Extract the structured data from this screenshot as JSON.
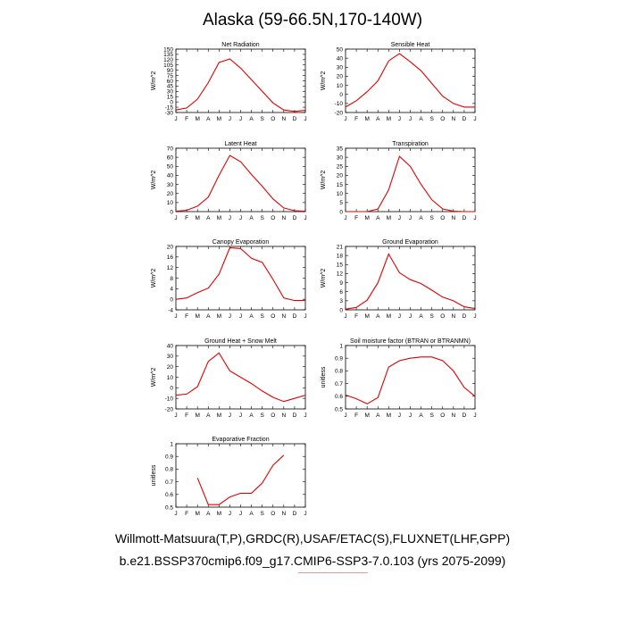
{
  "page": {
    "title": "Alaska (59-66.5N,170-140W)",
    "caption_line1": "Willmott-Matsuura(T,P),GRDC(R),USAF/ETAC(S),FLUXNET(LHF,GPP)",
    "caption_line2": "b.e21.BSSP370cmip6.f09_g17.CMIP6-SSP3-7.0.103 (yrs 2075-2099)",
    "line_color": "#e00000"
  },
  "chart_data": [
    {
      "type": "line",
      "title": "Net Radiation",
      "ylabel": "W/m^2",
      "categories": [
        "J",
        "F",
        "M",
        "A",
        "M",
        "J",
        "J",
        "A",
        "S",
        "O",
        "N",
        "D",
        "J"
      ],
      "ylim": [
        -30,
        150
      ],
      "yticks": [
        -30,
        -15,
        0,
        15,
        30,
        45,
        60,
        75,
        90,
        105,
        120,
        135,
        150
      ],
      "values": [
        -23,
        -17,
        8,
        55,
        112,
        122,
        96,
        63,
        30,
        -3,
        -23,
        -27,
        -24
      ]
    },
    {
      "type": "line",
      "title": "Sensible Heat",
      "ylabel": "W/m^2",
      "categories": [
        "J",
        "F",
        "M",
        "A",
        "M",
        "J",
        "J",
        "A",
        "S",
        "O",
        "N",
        "D",
        "J"
      ],
      "ylim": [
        -20,
        50
      ],
      "yticks": [
        -20,
        -10,
        0,
        10,
        20,
        30,
        40,
        50
      ],
      "values": [
        -14,
        -7,
        3,
        15,
        37,
        45,
        36,
        26,
        12,
        -2,
        -10,
        -14,
        -14
      ]
    },
    {
      "type": "line",
      "title": "Latent Heat",
      "ylabel": "W/m^2",
      "categories": [
        "J",
        "F",
        "M",
        "A",
        "M",
        "J",
        "J",
        "A",
        "S",
        "O",
        "N",
        "D",
        "J"
      ],
      "ylim": [
        0,
        70
      ],
      "yticks": [
        0,
        10,
        20,
        30,
        40,
        50,
        60,
        70
      ],
      "values": [
        0.5,
        1.5,
        6,
        16,
        40,
        62,
        55,
        41,
        28,
        14,
        4,
        1,
        0.5
      ]
    },
    {
      "type": "line",
      "title": "Transpiration",
      "ylabel": "W/m^2",
      "categories": [
        "J",
        "F",
        "M",
        "A",
        "M",
        "J",
        "J",
        "A",
        "S",
        "O",
        "N",
        "D",
        "J"
      ],
      "ylim": [
        0,
        35
      ],
      "yticks": [
        0,
        5,
        10,
        15,
        20,
        25,
        30,
        35
      ],
      "values": [
        0,
        0,
        0,
        1.5,
        12,
        30.5,
        25,
        15,
        6.5,
        1.5,
        0.2,
        0,
        0
      ]
    },
    {
      "type": "line",
      "title": "Canopy Evaporation",
      "ylabel": "W/m^2",
      "categories": [
        "J",
        "F",
        "M",
        "A",
        "M",
        "J",
        "J",
        "A",
        "S",
        "O",
        "N",
        "D",
        "J"
      ],
      "ylim": [
        -4,
        20
      ],
      "yticks": [
        -4,
        0,
        4,
        8,
        12,
        16,
        20
      ],
      "values": [
        0,
        0.5,
        2.5,
        4.2,
        9.5,
        19.5,
        19.2,
        15.5,
        14,
        7.5,
        0.5,
        -0.5,
        -0.4
      ]
    },
    {
      "type": "line",
      "title": "Ground Evaporation",
      "ylabel": "W/m^2",
      "categories": [
        "J",
        "F",
        "M",
        "A",
        "M",
        "J",
        "J",
        "A",
        "S",
        "O",
        "N",
        "D",
        "J"
      ],
      "ylim": [
        0,
        21
      ],
      "yticks": [
        0,
        3,
        6,
        9,
        12,
        15,
        18,
        21
      ],
      "values": [
        0.2,
        0.8,
        3.2,
        9,
        18.5,
        12.3,
        10,
        8.7,
        6.5,
        4.2,
        3,
        1,
        0.4
      ]
    },
    {
      "type": "line",
      "title": "Ground Heat + Snow Melt",
      "ylabel": "W/m^2",
      "categories": [
        "J",
        "F",
        "M",
        "A",
        "M",
        "J",
        "J",
        "A",
        "S",
        "O",
        "N",
        "D",
        "J"
      ],
      "ylim": [
        -20,
        40
      ],
      "yticks": [
        -20,
        -10,
        0,
        10,
        20,
        30,
        40
      ],
      "values": [
        -7,
        -6,
        1,
        25,
        33,
        16,
        10,
        4,
        -3,
        -9,
        -13,
        -10,
        -7
      ]
    },
    {
      "type": "line",
      "title": "Soil moisture factor (BTRAN or BTRANMN)",
      "ylabel": "unitless",
      "categories": [
        "J",
        "F",
        "M",
        "A",
        "M",
        "J",
        "J",
        "A",
        "S",
        "O",
        "N",
        "D",
        "J"
      ],
      "ylim": [
        0.5,
        1.0
      ],
      "yticks": [
        0.5,
        0.6,
        0.7,
        0.8,
        0.9,
        1.0
      ],
      "values": [
        0.61,
        0.58,
        0.54,
        0.59,
        0.83,
        0.88,
        0.9,
        0.91,
        0.91,
        0.88,
        0.8,
        0.67,
        0.6
      ]
    },
    {
      "type": "line",
      "title": "Evaporative Fraction",
      "ylabel": "unitless",
      "categories": [
        "J",
        "F",
        "M",
        "A",
        "M",
        "J",
        "J",
        "A",
        "S",
        "O",
        "N",
        "D",
        "J"
      ],
      "ylim": [
        0.5,
        1.0
      ],
      "yticks": [
        0.5,
        0.6,
        0.7,
        0.8,
        0.9,
        1.0
      ],
      "values": [
        null,
        null,
        0.73,
        0.52,
        0.52,
        0.58,
        0.61,
        0.61,
        0.69,
        0.83,
        0.91,
        null,
        null
      ]
    }
  ]
}
